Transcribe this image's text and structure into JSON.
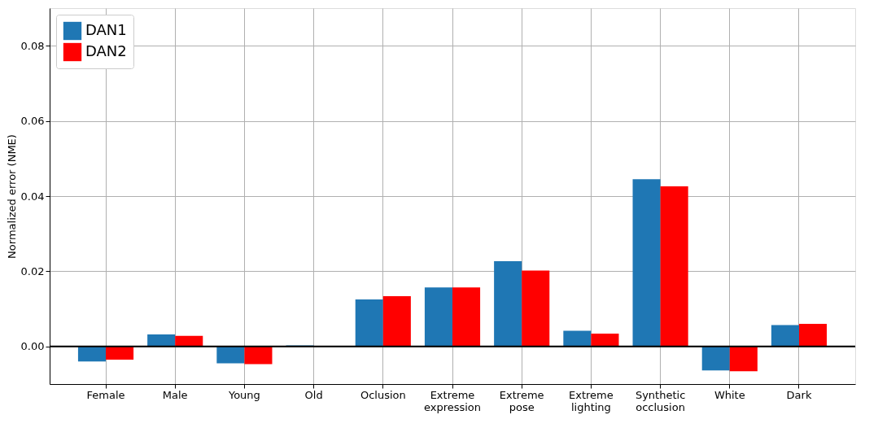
{
  "chart_data": {
    "type": "bar",
    "ylabel": "Normalized error (NME)",
    "categories": [
      "Female",
      "Male",
      "Young",
      "Old",
      "Oclusion",
      "Extreme expression",
      "Extreme pose",
      "Extreme lighting",
      "Synthetic occlusion",
      "White",
      "Dark"
    ],
    "series": [
      {
        "name": "DAN1",
        "color": "#1f77b4",
        "values": [
          -0.004,
          0.0032,
          -0.0045,
          0.0003,
          0.0125,
          0.0157,
          0.0227,
          0.0042,
          0.0445,
          -0.0064,
          0.0057
        ]
      },
      {
        "name": "DAN2",
        "color": "#ff0000",
        "values": [
          -0.0035,
          0.0028,
          -0.0047,
          0.0,
          0.0134,
          0.0157,
          0.0202,
          0.0034,
          0.0426,
          -0.0066,
          0.006
        ]
      }
    ],
    "ylim": [
      -0.01,
      0.09
    ],
    "yticks": [
      {
        "value": 0,
        "label": "0.00"
      },
      0.02,
      0.04,
      0.06,
      0.08
    ],
    "ref_lines": [
      {
        "axis": "y",
        "value": 0,
        "color": "#000000"
      }
    ],
    "grid": true,
    "legend": "top left"
  }
}
